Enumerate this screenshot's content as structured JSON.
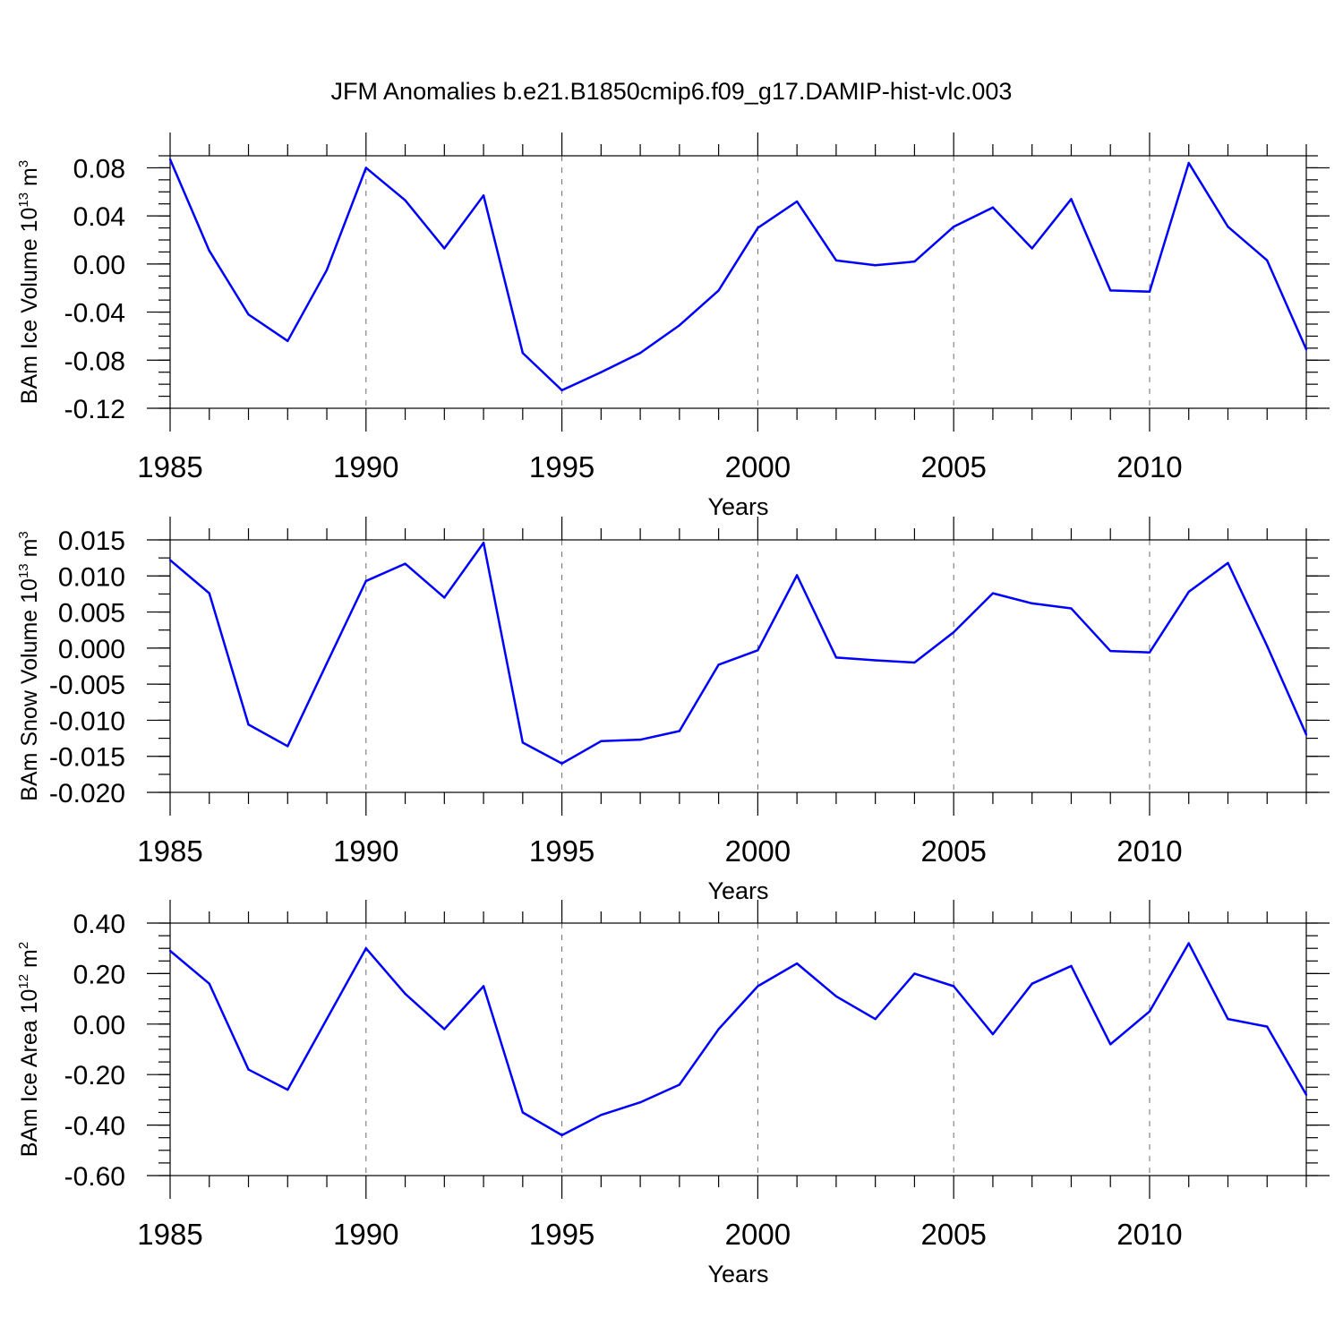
{
  "title": "JFM Anomalies b.e21.B1850cmip6.f09_g17.DAMIP-hist-vlc.003",
  "colors": {
    "line": "#0000ff",
    "axis": "#000000",
    "grid": "#6e6e6e"
  },
  "chart_data": [
    {
      "type": "line",
      "ylabel": {
        "text": "BAm Ice Volume 10",
        "exp": "13",
        "unit": " m",
        "unit_exp": "3"
      },
      "xlabel": "Years",
      "xlim": [
        1985,
        2014
      ],
      "ylim": [
        -0.12,
        0.09
      ],
      "xticks": [
        1985,
        1990,
        1995,
        2000,
        2005,
        2010
      ],
      "xtick_labels": [
        "1985",
        "1990",
        "1995",
        "2000",
        "2005",
        "2010"
      ],
      "yticks": [
        -0.12,
        -0.08,
        -0.04,
        0.0,
        0.04,
        0.08
      ],
      "ytick_labels": [
        "-0.12",
        "-0.08",
        "-0.04",
        "0.00",
        "0.04",
        "0.08"
      ],
      "grid": "vertical dashed at major x ticks",
      "x": [
        1985,
        1986,
        1987,
        1988,
        1989,
        1990,
        1991,
        1992,
        1993,
        1994,
        1995,
        1996,
        1997,
        1998,
        1999,
        2000,
        2001,
        2002,
        2003,
        2004,
        2005,
        2006,
        2007,
        2008,
        2009,
        2010,
        2011,
        2012,
        2013,
        2014
      ],
      "values": [
        0.087,
        0.011,
        -0.042,
        -0.064,
        -0.005,
        0.08,
        0.053,
        0.013,
        0.057,
        -0.074,
        -0.105,
        -0.09,
        -0.074,
        -0.051,
        -0.022,
        0.03,
        0.052,
        0.003,
        -0.001,
        0.002,
        0.031,
        0.047,
        0.013,
        0.054,
        -0.022,
        -0.023,
        0.084,
        0.031,
        0.003,
        -0.071
      ]
    },
    {
      "type": "line",
      "ylabel": {
        "text": "BAm Snow Volume 10",
        "exp": "13",
        "unit": " m",
        "unit_exp": "3"
      },
      "xlabel": "Years",
      "xlim": [
        1985,
        2014
      ],
      "ylim": [
        -0.02,
        0.015
      ],
      "xticks": [
        1985,
        1990,
        1995,
        2000,
        2005,
        2010
      ],
      "xtick_labels": [
        "1985",
        "1990",
        "1995",
        "2000",
        "2005",
        "2010"
      ],
      "yticks": [
        -0.02,
        -0.015,
        -0.01,
        -0.005,
        0.0,
        0.005,
        0.01,
        0.015
      ],
      "ytick_labels": [
        "-0.020",
        "-0.015",
        "-0.010",
        "-0.005",
        "0.000",
        "0.005",
        "0.010",
        "0.015"
      ],
      "grid": "vertical dashed at major x ticks",
      "x": [
        1985,
        1986,
        1987,
        1988,
        1989,
        1990,
        1991,
        1992,
        1993,
        1994,
        1995,
        1996,
        1997,
        1998,
        1999,
        2000,
        2001,
        2002,
        2003,
        2004,
        2005,
        2006,
        2007,
        2008,
        2009,
        2010,
        2011,
        2012,
        2013,
        2014
      ],
      "values": [
        0.0122,
        0.0076,
        -0.0106,
        -0.0136,
        -0.0021,
        0.0093,
        0.0117,
        0.007,
        0.0146,
        -0.0131,
        -0.016,
        -0.0129,
        -0.0127,
        -0.0115,
        -0.0023,
        -0.0003,
        0.0101,
        -0.0013,
        -0.0017,
        -0.002,
        0.0022,
        0.0076,
        0.0062,
        0.0055,
        -0.0004,
        -0.0006,
        0.0078,
        0.0118,
        0.0003,
        -0.012
      ]
    },
    {
      "type": "line",
      "ylabel": {
        "text": "BAm Ice Area 10",
        "exp": "12",
        "unit": " m",
        "unit_exp": "2"
      },
      "xlabel": "Years",
      "xlim": [
        1985,
        2014
      ],
      "ylim": [
        -0.6,
        0.4
      ],
      "xticks": [
        1985,
        1990,
        1995,
        2000,
        2005,
        2010
      ],
      "xtick_labels": [
        "1985",
        "1990",
        "1995",
        "2000",
        "2005",
        "2010"
      ],
      "yticks": [
        -0.6,
        -0.4,
        -0.2,
        0.0,
        0.2,
        0.4
      ],
      "ytick_labels": [
        "-0.60",
        "-0.40",
        "-0.20",
        "0.00",
        "0.20",
        "0.40"
      ],
      "grid": "vertical dashed at major x ticks",
      "x": [
        1985,
        1986,
        1987,
        1988,
        1989,
        1990,
        1991,
        1992,
        1993,
        1994,
        1995,
        1996,
        1997,
        1998,
        1999,
        2000,
        2001,
        2002,
        2003,
        2004,
        2005,
        2006,
        2007,
        2008,
        2009,
        2010,
        2011,
        2012,
        2013,
        2014
      ],
      "values": [
        0.29,
        0.16,
        -0.18,
        -0.26,
        0.02,
        0.3,
        0.12,
        -0.02,
        0.15,
        -0.35,
        -0.44,
        -0.36,
        -0.31,
        -0.24,
        -0.02,
        0.15,
        0.24,
        0.11,
        0.02,
        0.2,
        0.15,
        -0.04,
        0.16,
        0.23,
        -0.08,
        0.05,
        0.32,
        0.02,
        -0.01,
        -0.28
      ]
    }
  ]
}
